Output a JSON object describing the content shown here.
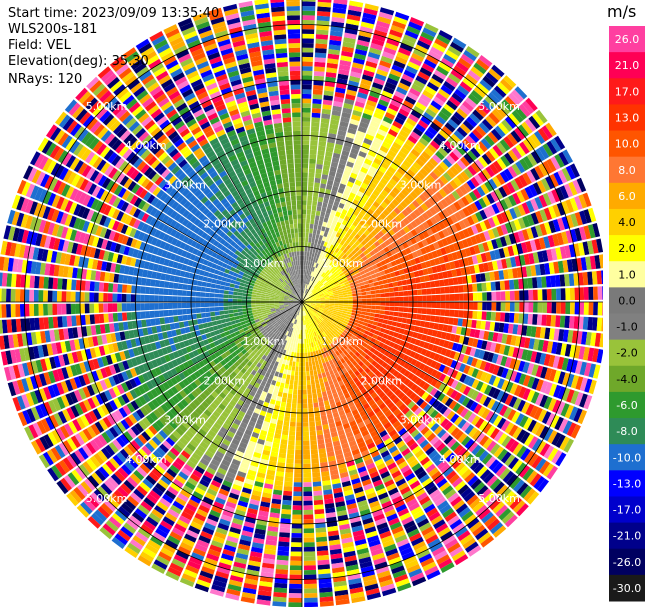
{
  "header": {
    "start_time_label": "Start time:",
    "start_time": "2023/09/09 13:35:40",
    "instrument": "WLS200s-181",
    "field_label": "Field:",
    "field": "VEL",
    "elevation_label": "Elevation(deg):",
    "elevation": "35.30",
    "nrays_label": "NRays:",
    "nrays": "120"
  },
  "colorbar": {
    "unit": "m/s",
    "ticks": [
      "26.0",
      "21.0",
      "17.0",
      "13.0",
      "10.0",
      "8.0",
      "6.0",
      "4.0",
      "2.0",
      "1.0",
      "0.0",
      "-1.0",
      "-2.0",
      "-4.0",
      "-6.0",
      "-8.0",
      "-10.0",
      "-13.0",
      "-17.0",
      "-21.0",
      "-26.0",
      "-30.0"
    ],
    "colors": [
      "#ff3fa0",
      "#ff0055",
      "#ff1a1a",
      "#ff3300",
      "#ff5500",
      "#ff7733",
      "#ffaa00",
      "#ffd000",
      "#ffff00",
      "#ffffa0",
      "#7a7a7a",
      "#808080",
      "#99c33a",
      "#6fa82a",
      "#2e9a2e",
      "#2e8b57",
      "#1e6fd0",
      "#0000ff",
      "#0000cc",
      "#00008b",
      "#000060",
      "#1a1a1a"
    ]
  },
  "chart_data": {
    "type": "heatmap",
    "subtype": "ppi-polar",
    "field": "VEL",
    "unit": "m/s",
    "nrays": 120,
    "range_rings_km": [
      "1.00km",
      "2.00km",
      "3.00km",
      "4.00km",
      "5.00km"
    ],
    "max_range_km": 5.5,
    "flow_direction_deg_from": 110,
    "approx_max_speed_ms": 17.0,
    "approx_min_speed_ms": -10.0
  }
}
